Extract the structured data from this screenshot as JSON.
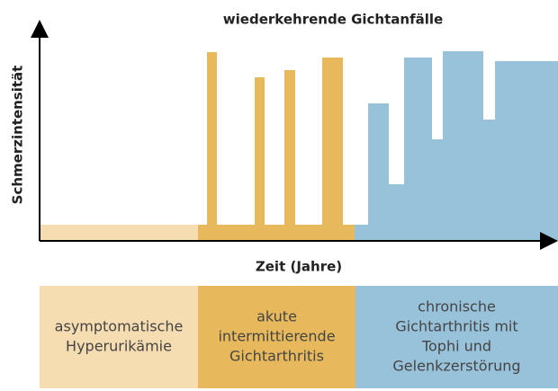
{
  "title": "wiederkehrende Gichtanfälle",
  "y_axis_label": "Schmerzintensität",
  "x_axis_label": "Zeit (Jahre)",
  "stages": [
    {
      "lines": [
        "asymptomatische",
        "Hyperurikämie"
      ]
    },
    {
      "lines": [
        "akute",
        "intermittierende",
        "Gichtarthritis"
      ]
    },
    {
      "lines": [
        "chronische",
        "Gichtarthritis mit",
        "Tophi und",
        "Gelenkzerstörung"
      ]
    }
  ]
}
